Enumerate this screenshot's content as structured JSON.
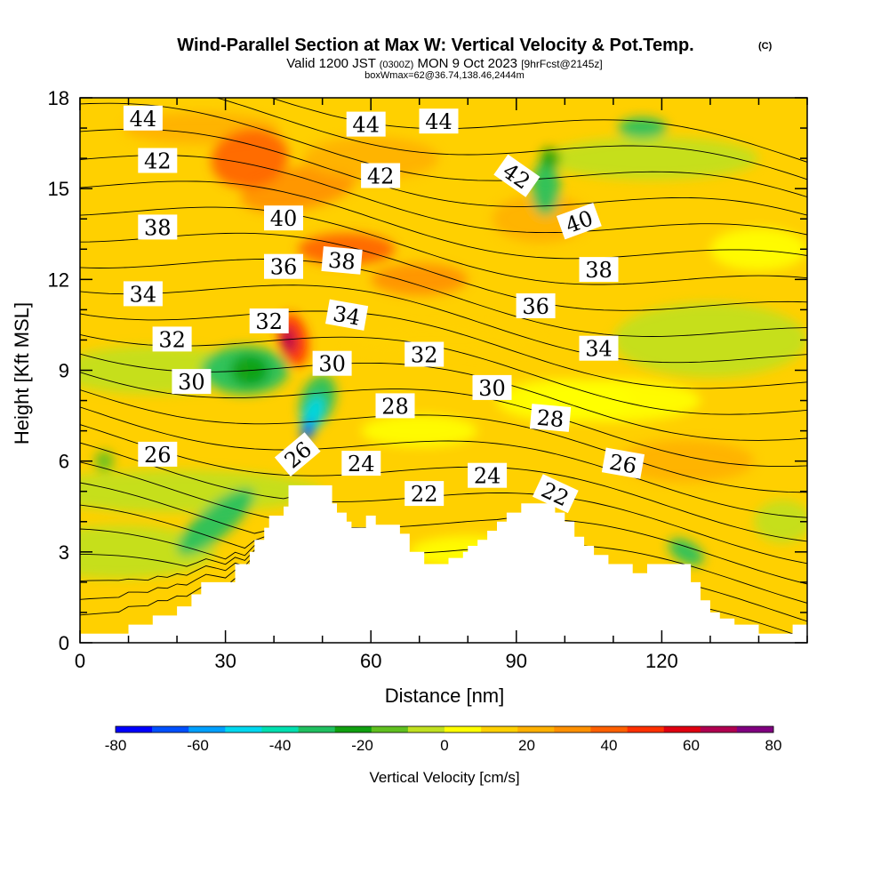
{
  "chart_data": {
    "type": "heatmap",
    "title": "Wind-Parallel Section at Max W: Vertical Velocity & Pot.Temp.",
    "title_mark": "(C)",
    "subtitle_parts": {
      "valid": "Valid 1200 JST",
      "utc": "(0300Z)",
      "date": "MON 9 Oct 2023",
      "fcst": "[9hrFcst@2145z]"
    },
    "subtitle2": "boxWmax=62@36.74,138.46,2444m",
    "xlabel": "Distance [nm]",
    "ylabel": "Height [Kft MSL]",
    "xlim": [
      0,
      150
    ],
    "ylim": [
      0,
      18
    ],
    "xticks": [
      0,
      30,
      60,
      90,
      120
    ],
    "yticks": [
      0,
      3,
      6,
      9,
      12,
      15,
      18
    ],
    "colorbar": {
      "label": "Vertical Velocity [cm/s]",
      "min": -80,
      "max": 80,
      "ticks": [
        -80,
        -60,
        -40,
        -20,
        0,
        20,
        40,
        60,
        80
      ],
      "colors": [
        "#0000ff",
        "#0050ff",
        "#00a0ff",
        "#00d8f0",
        "#00e0b0",
        "#20c060",
        "#10a010",
        "#60c020",
        "#c0e020",
        "#ffff00",
        "#ffd000",
        "#ffb000",
        "#ff9000",
        "#ff6000",
        "#ff3000",
        "#e00010",
        "#b00050",
        "#800080"
      ]
    },
    "terrain": [
      [
        0,
        0.3
      ],
      [
        10,
        0.3
      ],
      [
        10,
        0.6
      ],
      [
        15,
        0.6
      ],
      [
        15,
        0.9
      ],
      [
        20,
        0.9
      ],
      [
        20,
        1.2
      ],
      [
        23,
        1.2
      ],
      [
        23,
        1.6
      ],
      [
        25,
        1.6
      ],
      [
        25,
        2.0
      ],
      [
        32,
        2.0
      ],
      [
        32,
        2.6
      ],
      [
        35,
        2.6
      ],
      [
        35,
        3.0
      ],
      [
        36,
        3.0
      ],
      [
        36,
        3.4
      ],
      [
        38,
        3.4
      ],
      [
        38,
        3.8
      ],
      [
        39,
        3.8
      ],
      [
        39,
        4.2
      ],
      [
        42,
        4.2
      ],
      [
        42,
        4.5
      ],
      [
        43,
        4.5
      ],
      [
        43,
        5.2
      ],
      [
        52,
        5.2
      ],
      [
        52,
        4.6
      ],
      [
        53,
        4.6
      ],
      [
        53,
        4.3
      ],
      [
        55,
        4.3
      ],
      [
        55,
        4.0
      ],
      [
        56,
        4.0
      ],
      [
        56,
        3.8
      ],
      [
        59,
        3.8
      ],
      [
        59,
        4.2
      ],
      [
        61,
        4.2
      ],
      [
        61,
        3.9
      ],
      [
        66,
        3.9
      ],
      [
        66,
        3.6
      ],
      [
        68,
        3.6
      ],
      [
        68,
        3.0
      ],
      [
        71,
        3.0
      ],
      [
        71,
        2.6
      ],
      [
        76,
        2.6
      ],
      [
        76,
        2.8
      ],
      [
        79,
        2.8
      ],
      [
        79,
        3.0
      ],
      [
        80,
        3.0
      ],
      [
        80,
        3.2
      ],
      [
        82,
        3.2
      ],
      [
        82,
        3.4
      ],
      [
        84,
        3.4
      ],
      [
        84,
        3.7
      ],
      [
        86,
        3.7
      ],
      [
        86,
        4.0
      ],
      [
        88,
        4.0
      ],
      [
        88,
        4.3
      ],
      [
        91,
        4.3
      ],
      [
        91,
        4.6
      ],
      [
        98,
        4.6
      ],
      [
        98,
        4.3
      ],
      [
        100,
        4.3
      ],
      [
        100,
        4.0
      ],
      [
        102,
        4.0
      ],
      [
        102,
        3.5
      ],
      [
        104,
        3.5
      ],
      [
        104,
        3.2
      ],
      [
        106,
        3.2
      ],
      [
        106,
        2.9
      ],
      [
        109,
        2.9
      ],
      [
        109,
        2.6
      ],
      [
        114,
        2.6
      ],
      [
        114,
        2.3
      ],
      [
        117,
        2.3
      ],
      [
        117,
        2.6
      ],
      [
        126,
        2.6
      ],
      [
        126,
        2.0
      ],
      [
        128,
        2.0
      ],
      [
        128,
        1.4
      ],
      [
        130,
        1.4
      ],
      [
        130,
        1.0
      ],
      [
        132,
        1.0
      ],
      [
        132,
        0.8
      ],
      [
        135,
        0.8
      ],
      [
        135,
        0.6
      ],
      [
        140,
        0.6
      ],
      [
        140,
        0.3
      ],
      [
        147,
        0.3
      ],
      [
        147,
        0.6
      ],
      [
        150,
        0.6
      ],
      [
        150,
        0
      ]
    ],
    "theta_levels": [
      20,
      21,
      22,
      23,
      24,
      25,
      26,
      27,
      28,
      29,
      30,
      31,
      32,
      33,
      34,
      35,
      36,
      37,
      38,
      39,
      40,
      41,
      42,
      43,
      44,
      45
    ],
    "theta_labels": [
      {
        "text": "44",
        "x": 13,
        "y": 17.3,
        "angle": 0
      },
      {
        "text": "44",
        "x": 59,
        "y": 17.1,
        "angle": 0
      },
      {
        "text": "44",
        "x": 74,
        "y": 17.2,
        "angle": 0
      },
      {
        "text": "42",
        "x": 16,
        "y": 15.9,
        "angle": 0
      },
      {
        "text": "42",
        "x": 62,
        "y": 15.4,
        "angle": 0
      },
      {
        "text": "42",
        "x": 90,
        "y": 15.4,
        "angle": 35
      },
      {
        "text": "40",
        "x": 42,
        "y": 14.0,
        "angle": 0
      },
      {
        "text": "40",
        "x": 103,
        "y": 13.9,
        "angle": -20
      },
      {
        "text": "38",
        "x": 16,
        "y": 13.7,
        "angle": 0
      },
      {
        "text": "38",
        "x": 54,
        "y": 12.6,
        "angle": 5
      },
      {
        "text": "38",
        "x": 107,
        "y": 12.3,
        "angle": 0
      },
      {
        "text": "36",
        "x": 42,
        "y": 12.4,
        "angle": 0
      },
      {
        "text": "36",
        "x": 94,
        "y": 11.1,
        "angle": 0
      },
      {
        "text": "34",
        "x": 13,
        "y": 11.5,
        "angle": 0
      },
      {
        "text": "34",
        "x": 55,
        "y": 10.8,
        "angle": 10
      },
      {
        "text": "34",
        "x": 107,
        "y": 9.7,
        "angle": 0
      },
      {
        "text": "32",
        "x": 19,
        "y": 10.0,
        "angle": 0
      },
      {
        "text": "32",
        "x": 39,
        "y": 10.6,
        "angle": 0
      },
      {
        "text": "32",
        "x": 71,
        "y": 9.5,
        "angle": 0
      },
      {
        "text": "30",
        "x": 23,
        "y": 8.6,
        "angle": 0
      },
      {
        "text": "30",
        "x": 52,
        "y": 9.2,
        "angle": 0
      },
      {
        "text": "30",
        "x": 85,
        "y": 8.4,
        "angle": 0
      },
      {
        "text": "28",
        "x": 65,
        "y": 7.8,
        "angle": 0
      },
      {
        "text": "28",
        "x": 97,
        "y": 7.4,
        "angle": 5
      },
      {
        "text": "26",
        "x": 16,
        "y": 6.2,
        "angle": 0
      },
      {
        "text": "26",
        "x": 45,
        "y": 6.2,
        "angle": -40
      },
      {
        "text": "26",
        "x": 112,
        "y": 5.9,
        "angle": 10
      },
      {
        "text": "24",
        "x": 58,
        "y": 5.9,
        "angle": 0
      },
      {
        "text": "24",
        "x": 84,
        "y": 5.5,
        "angle": 0
      },
      {
        "text": "22",
        "x": 71,
        "y": 4.9,
        "angle": 0
      },
      {
        "text": "22",
        "x": 98,
        "y": 4.9,
        "angle": 25
      }
    ]
  }
}
